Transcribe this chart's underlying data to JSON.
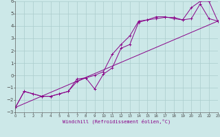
{
  "xlabel": "Windchill (Refroidissement éolien,°C)",
  "bg_color": "#cce8e8",
  "grid_color": "#aacccc",
  "line_color": "#880088",
  "xlim": [
    0,
    23
  ],
  "ylim": [
    -3,
    6
  ],
  "xticks": [
    0,
    1,
    2,
    3,
    4,
    5,
    6,
    7,
    8,
    9,
    10,
    11,
    12,
    13,
    14,
    15,
    16,
    17,
    18,
    19,
    20,
    21,
    22,
    23
  ],
  "yticks": [
    -3,
    -2,
    -1,
    0,
    1,
    2,
    3,
    4,
    5,
    6
  ],
  "series1_x": [
    0,
    1,
    2,
    3,
    4,
    5,
    6,
    7,
    8,
    9,
    10,
    11,
    12,
    13,
    14,
    15,
    16,
    17,
    18,
    19,
    20,
    21,
    22,
    23
  ],
  "series1_y": [
    -2.6,
    -1.3,
    -1.5,
    -1.7,
    -1.7,
    -1.5,
    -1.3,
    -0.5,
    -0.2,
    -1.1,
    0.1,
    0.6,
    2.2,
    2.5,
    4.3,
    4.5,
    4.75,
    4.75,
    4.6,
    4.5,
    5.5,
    6.0,
    6.0,
    4.4
  ],
  "series2_x": [
    0,
    1,
    2,
    3,
    4,
    5,
    6,
    7,
    8,
    9,
    10,
    11,
    12,
    13,
    14,
    15,
    16,
    17,
    18,
    19,
    20,
    21,
    22,
    23
  ],
  "series2_y": [
    -2.6,
    -1.3,
    -1.5,
    -1.7,
    -1.7,
    -1.5,
    -1.3,
    -0.3,
    -0.2,
    0.0,
    0.3,
    1.7,
    2.5,
    3.2,
    4.4,
    4.5,
    4.6,
    4.7,
    4.7,
    4.5,
    4.6,
    5.8,
    4.6,
    4.4
  ],
  "series3_x": [
    0,
    23
  ],
  "series3_y": [
    -2.6,
    4.4
  ]
}
